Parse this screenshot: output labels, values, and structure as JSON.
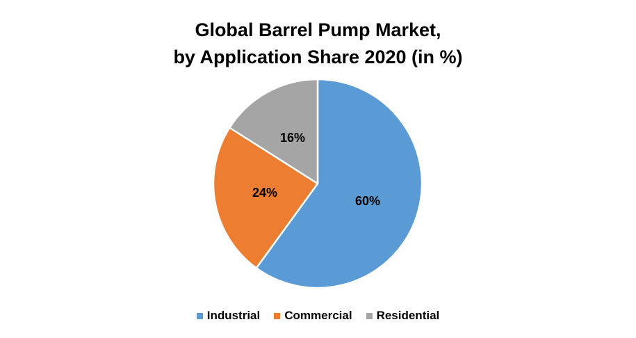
{
  "chart_data": {
    "type": "pie",
    "title": "Global Barrel Pump Market,",
    "subtitle": "by Application Share 2020  (in %)",
    "slices": [
      {
        "name": "Industrial",
        "value": 60,
        "label": "60%",
        "color": "#5B9BD5"
      },
      {
        "name": "Commercial",
        "value": 24,
        "label": "24%",
        "color": "#ED7D31"
      },
      {
        "name": "Residential",
        "value": 16,
        "label": "16%",
        "color": "#A5A5A5"
      }
    ],
    "start_angle": "12 o'clock",
    "direction": "clockwise",
    "legend_position": "bottom"
  }
}
